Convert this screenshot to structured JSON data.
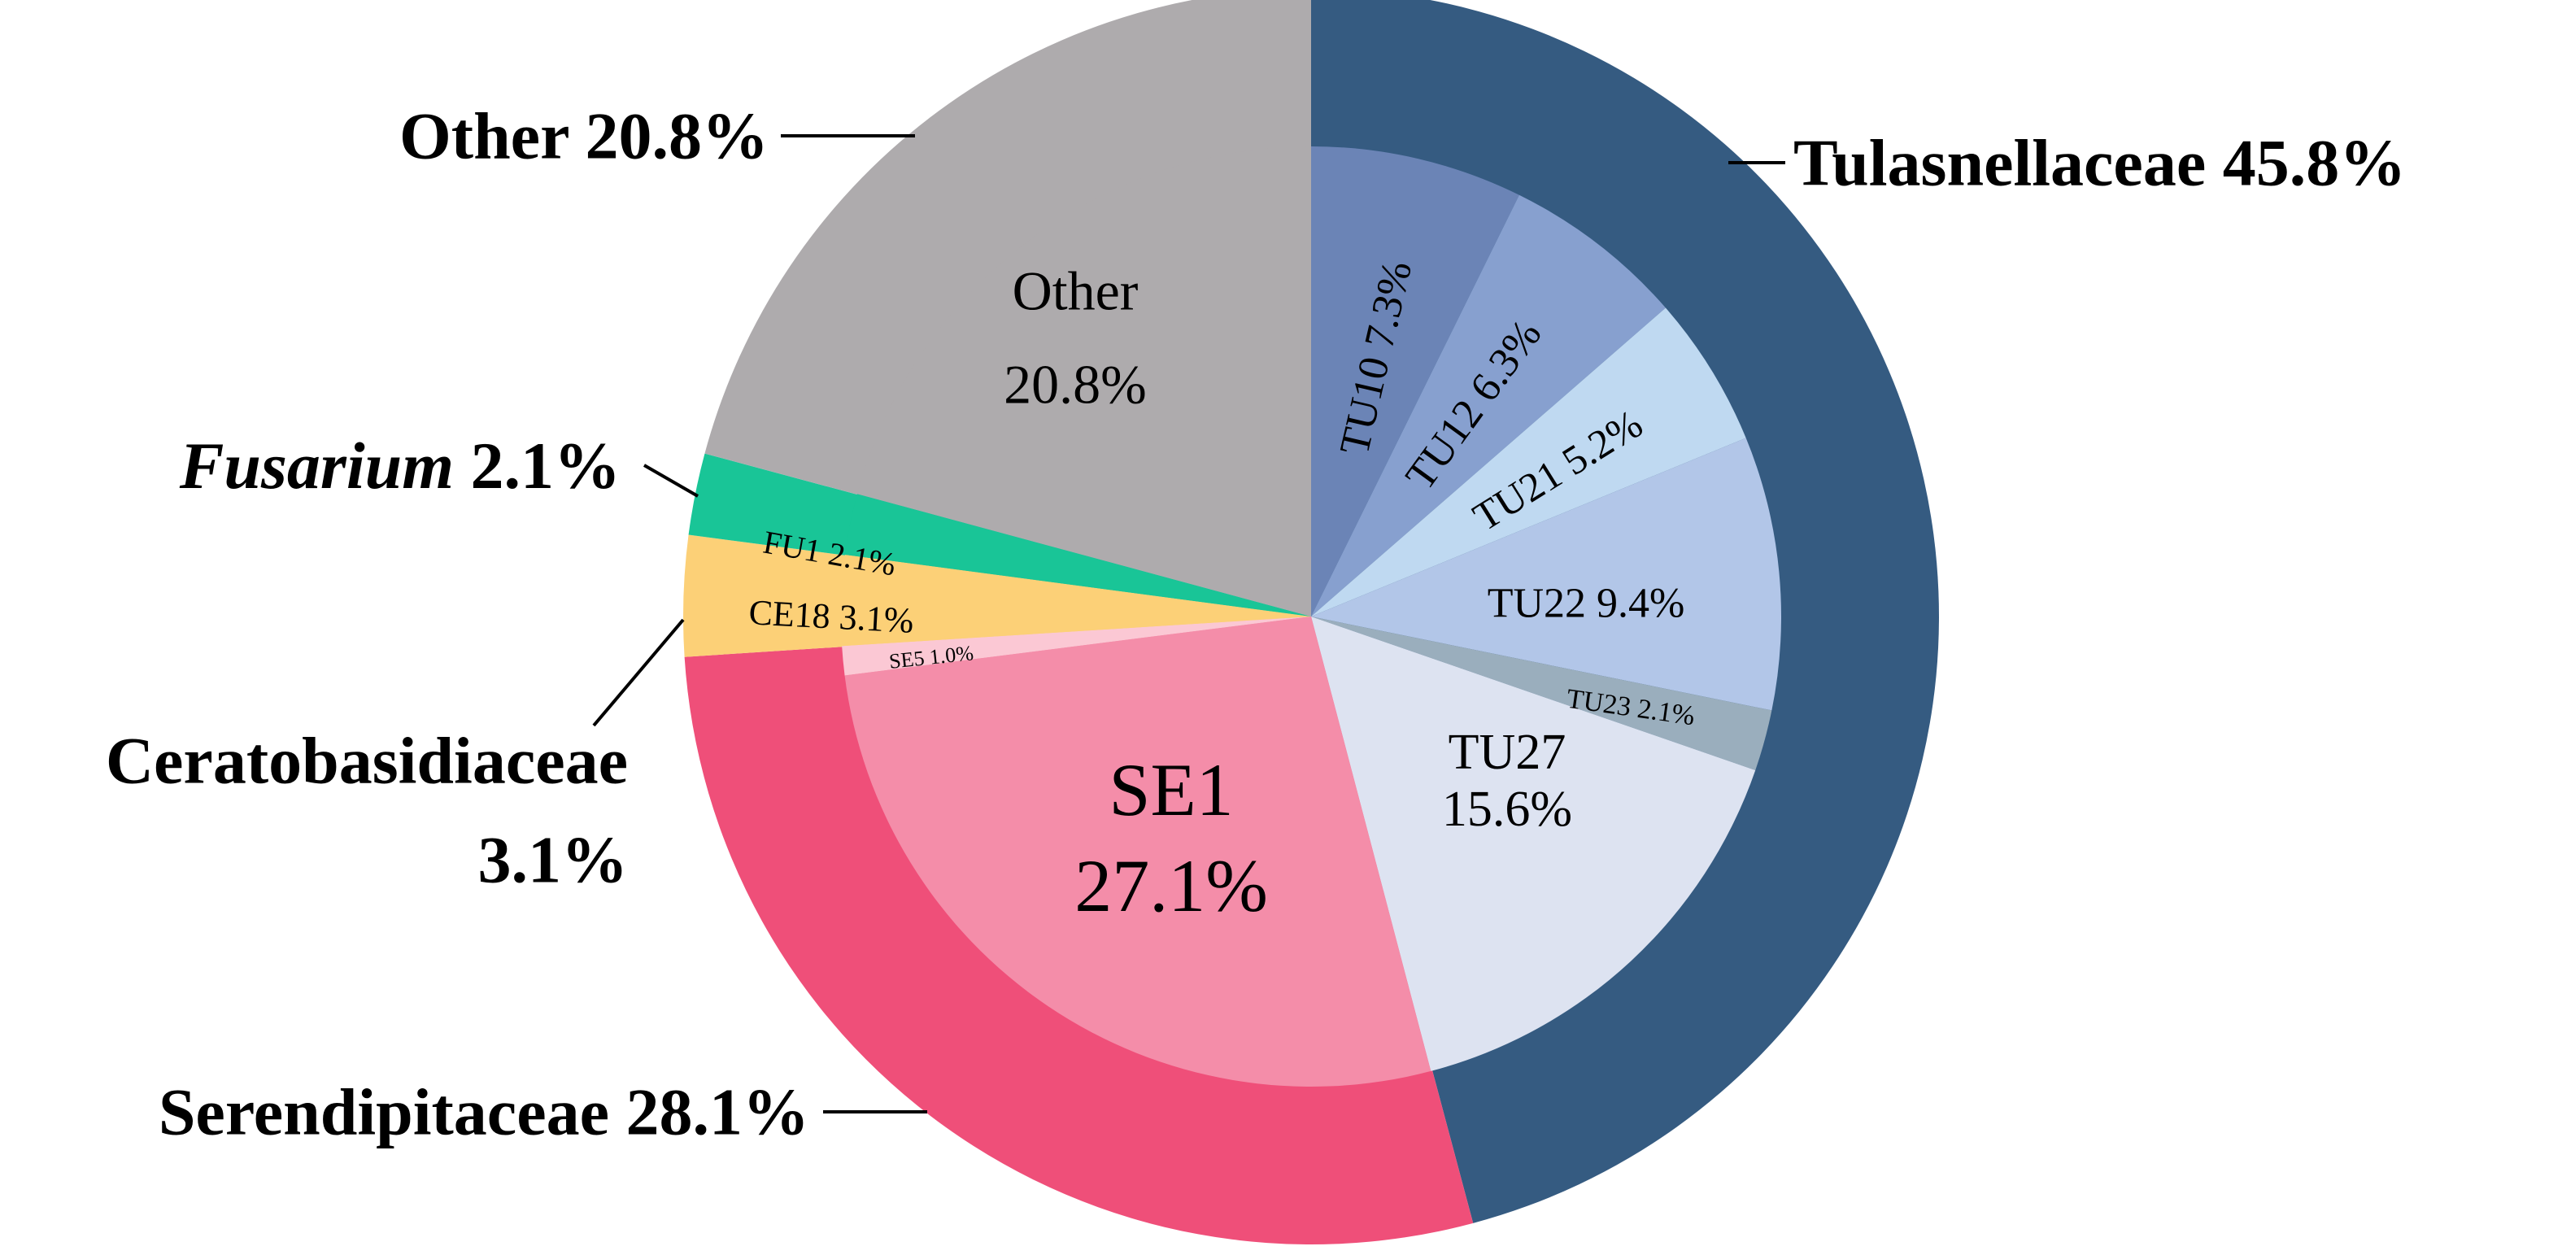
{
  "chart_data": {
    "type": "pie",
    "variant": "nested-donut",
    "outer_ring": [
      {
        "label": "Tulasnellaceae",
        "value": 45.8,
        "display": "Tulasnellaceae  45.8%",
        "color": "#355b81"
      },
      {
        "label": "Serendipitaceae",
        "value": 28.1,
        "display": "Serendipitaceae 28.1%",
        "color": "#ef4f79"
      },
      {
        "label": "Ceratobasidiaceae",
        "value": 3.1,
        "display_lines": [
          "Ceratobasidiaceae",
          "3.1%"
        ],
        "color": "#fcd077"
      },
      {
        "label": "Fusarium",
        "label_italic": true,
        "value": 2.1,
        "value_text": " 2.1%",
        "color": "#19c597"
      },
      {
        "label": "Other",
        "value": 20.8,
        "display": "Other 20.8%",
        "color": "#aeabad"
      }
    ],
    "inner_ring": [
      {
        "label": "TU10",
        "value": 7.3,
        "display": "TU10  7.3%",
        "color": "#6b84b6"
      },
      {
        "label": "TU12",
        "value": 6.3,
        "display": "TU12  6.3%",
        "color": "#87a0cf"
      },
      {
        "label": "TU21",
        "value": 5.2,
        "display": "TU21  5.2%",
        "color": "#bfd9f1"
      },
      {
        "label": "TU22",
        "value": 9.4,
        "display": "TU22  9.4%",
        "color": "#b2c6e8"
      },
      {
        "label": "TU23",
        "value": 2.1,
        "display": "TU23 2.1%",
        "color": "#9aaebd"
      },
      {
        "label": "TU27",
        "value": 15.6,
        "display_lines": [
          "TU27",
          "15.6%"
        ],
        "color": "#dde3f1"
      },
      {
        "label": "SE1",
        "value": 27.1,
        "display_lines": [
          "SE1",
          "27.1%"
        ],
        "color": "#f48da9"
      },
      {
        "label": "SE5",
        "value": 1.0,
        "display": "SE5  1.0%",
        "color": "#fbc8d4"
      },
      {
        "label": "CE18",
        "value": 3.1,
        "display": "CE18  3.1%",
        "color": "#fcd077"
      },
      {
        "label": "FU1",
        "value": 2.1,
        "display": "FU1  2.1%",
        "color": "#19c597"
      },
      {
        "label": "Other",
        "value": 20.8,
        "display_lines": [
          "Other",
          "20.8%"
        ],
        "color": "#aeabad"
      }
    ]
  }
}
